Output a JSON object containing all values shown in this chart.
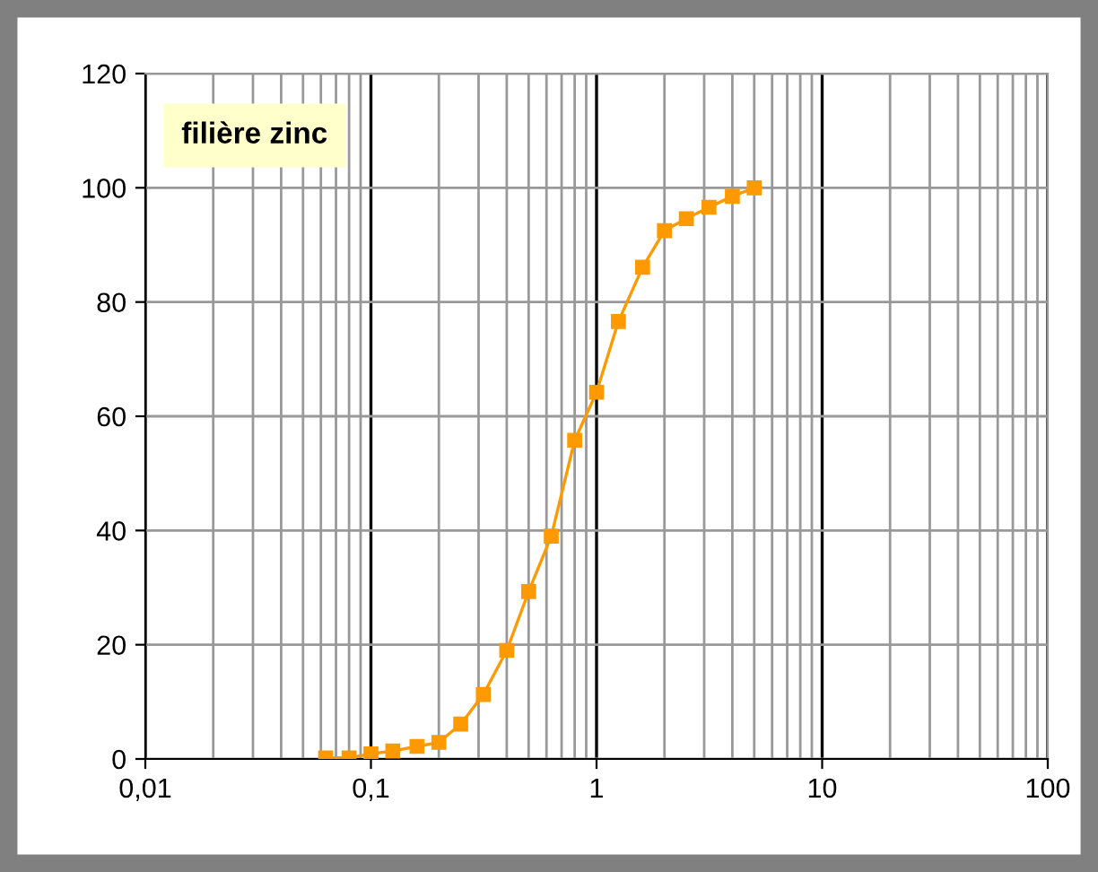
{
  "chart_data": {
    "type": "line",
    "log": "x",
    "x": [
      0.063,
      0.08,
      0.1,
      0.125,
      0.16,
      0.2,
      0.25,
      0.315,
      0.4,
      0.5,
      0.63,
      0.8,
      1,
      1.25,
      1.6,
      2,
      2.5,
      3.15,
      4,
      5
    ],
    "series": [
      {
        "color": "#ff9900",
        "values": [
          0.2,
          0.2,
          0.9,
          1.4,
          2.2,
          2.9,
          6.1,
          11.3,
          19.0,
          29.3,
          39.0,
          55.8,
          64.2,
          76.6,
          86.1,
          92.5,
          94.6,
          96.6,
          98.5,
          100
        ]
      }
    ],
    "xlim": [
      0.01,
      100
    ],
    "xticks": [
      {
        "value": 0.01,
        "label": "0,01"
      },
      {
        "value": 0.1,
        "label": "0,1"
      },
      1,
      10,
      100
    ],
    "ylim": [
      0,
      120
    ],
    "yticks": [
      0,
      20,
      40,
      60,
      80,
      100,
      120
    ],
    "grid": true,
    "marker": "square",
    "line_style": "solid",
    "annotations": [
      "filière zinc"
    ]
  }
}
